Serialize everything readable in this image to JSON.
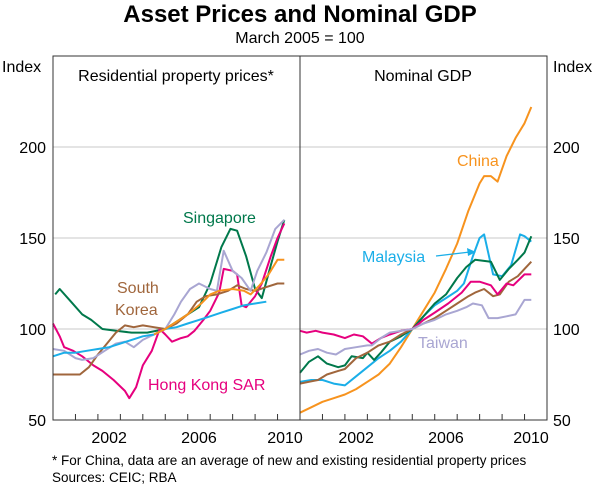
{
  "title": "Asset Prices and Nominal GDP",
  "subtitle": "March 2005 = 100",
  "footnote": "*   For China, data are an average of new and existing residential property prices",
  "sources": "Sources: CEIC; RBA",
  "chart_data": [
    {
      "type": "line",
      "title": "Residential property prices*",
      "ylabel": "Index",
      "ylim": [
        50,
        225
      ],
      "yticks": [
        50,
        100,
        150,
        200
      ],
      "xlim": [
        2000,
        2011
      ],
      "xticks": [
        "2002",
        "2006",
        "2010"
      ],
      "grid": true,
      "annotations": [
        "Singapore",
        "South Korea",
        "Hong Kong SAR"
      ],
      "series": [
        {
          "name": "Singapore",
          "color": "#00784b",
          "label": "Singapore",
          "x": [
            2000.1,
            2000.3,
            2000.8,
            2001.3,
            2001.7,
            2002.2,
            2002.8,
            2003.5,
            2004.2,
            2005.0,
            2005.5,
            2006.0,
            2006.5,
            2007.0,
            2007.5,
            2007.9,
            2008.2,
            2008.6,
            2009.0,
            2009.3,
            2009.7,
            2010.0,
            2010.3
          ],
          "y": [
            119,
            122,
            115,
            108,
            105,
            100,
            99,
            98,
            98,
            100,
            104,
            108,
            112,
            125,
            145,
            155,
            154,
            140,
            122,
            117,
            135,
            148,
            160
          ]
        },
        {
          "name": "Hong Kong SAR",
          "color": "#e6007e",
          "label": "Hong Kong SAR",
          "x": [
            2000.0,
            2000.3,
            2000.5,
            2000.9,
            2001.3,
            2001.8,
            2002.2,
            2002.7,
            2003.2,
            2003.4,
            2003.7,
            2004.0,
            2004.4,
            2004.75,
            2005.0,
            2005.3,
            2005.7,
            2006.0,
            2006.3,
            2006.7,
            2007.0,
            2007.4,
            2007.6,
            2008.0,
            2008.2,
            2008.4,
            2008.6,
            2009.0,
            2009.3,
            2009.7,
            2010.0,
            2010.3
          ],
          "y": [
            103,
            96,
            90,
            88,
            85,
            80,
            77,
            72,
            66,
            62,
            68,
            80,
            88,
            100,
            97,
            93,
            95,
            96,
            99,
            105,
            110,
            120,
            133,
            132,
            130,
            113,
            112,
            118,
            125,
            140,
            150,
            158
          ]
        },
        {
          "name": "South Korea",
          "color": "#a0663c",
          "label": "South Korea",
          "x": [
            2000.0,
            2000.6,
            2001.2,
            2001.6,
            2002.0,
            2002.4,
            2002.8,
            2003.2,
            2003.6,
            2004.0,
            2004.5,
            2005.0,
            2005.5,
            2006.0,
            2006.4,
            2006.8,
            2007.3,
            2007.8,
            2008.2,
            2008.6,
            2009.0,
            2009.5,
            2010.0,
            2010.3
          ],
          "y": [
            75,
            75,
            75,
            79,
            86,
            92,
            98,
            102,
            101,
            102,
            101,
            100,
            103,
            108,
            115,
            118,
            119,
            121,
            124,
            122,
            121,
            123,
            125,
            125
          ]
        },
        {
          "name": "Taiwan",
          "color": "#a9a6d2",
          "label": "",
          "x": [
            2000.0,
            2000.5,
            2001.0,
            2001.3,
            2001.8,
            2002.3,
            2002.8,
            2003.2,
            2003.6,
            2004.0,
            2004.5,
            2005.0,
            2005.4,
            2005.7,
            2006.1,
            2006.5,
            2007.0,
            2007.3,
            2007.6,
            2008.0,
            2008.4,
            2008.8,
            2009.1,
            2009.5,
            2009.9,
            2010.3
          ],
          "y": [
            89,
            88,
            84,
            83,
            84,
            88,
            92,
            93,
            90,
            94,
            97,
            100,
            108,
            115,
            122,
            125,
            122,
            121,
            143,
            132,
            128,
            121,
            132,
            142,
            155,
            160
          ]
        },
        {
          "name": "Malaysia",
          "color": "#1aaee8",
          "label": "",
          "x": [
            2000.0,
            2000.5,
            2001.0,
            2001.5,
            2002.0,
            2002.5,
            2003.0,
            2003.5,
            2004.0,
            2004.5,
            2005.0,
            2005.5,
            2006.0,
            2006.5,
            2007.0,
            2007.5,
            2008.0,
            2008.5,
            2009.0,
            2009.5
          ],
          "y": [
            85,
            87,
            87,
            88,
            89,
            90,
            92,
            94,
            96,
            97,
            100,
            101,
            103,
            105,
            107,
            109,
            111,
            113,
            114,
            115
          ]
        },
        {
          "name": "China",
          "color": "#f7931e",
          "label": "",
          "x": [
            2004.5,
            2005.0,
            2005.5,
            2006.0,
            2006.6,
            2007.0,
            2007.4,
            2008.0,
            2008.5,
            2008.8,
            2009.2,
            2009.6,
            2010.0,
            2010.3
          ],
          "y": [
            97,
            100,
            104,
            108,
            114,
            119,
            121,
            122,
            121,
            119,
            124,
            130,
            138,
            138
          ]
        }
      ]
    },
    {
      "type": "line",
      "title": "Nominal GDP",
      "ylabel": "Index",
      "ylim": [
        50,
        225
      ],
      "yticks": [
        50,
        100,
        150,
        200
      ],
      "xlim": [
        2000,
        2011
      ],
      "xticks": [
        "2002",
        "2006",
        "2010"
      ],
      "grid": true,
      "annotations": [
        "China",
        "Malaysia",
        "Taiwan"
      ],
      "series": [
        {
          "name": "China",
          "color": "#f7931e",
          "x": [
            2000.0,
            2000.5,
            2001.0,
            2001.5,
            2002.0,
            2002.5,
            2003.0,
            2003.5,
            2004.0,
            2004.5,
            2005.0,
            2005.5,
            2006.0,
            2006.5,
            2007.0,
            2007.5,
            2008.0,
            2008.2,
            2008.5,
            2008.8,
            2009.2,
            2009.6,
            2010.0,
            2010.3
          ],
          "y": [
            54,
            57,
            60,
            62,
            64,
            67,
            71,
            75,
            81,
            90,
            100,
            110,
            120,
            133,
            147,
            165,
            180,
            184,
            184,
            181,
            195,
            205,
            213,
            222
          ]
        },
        {
          "name": "Malaysia",
          "color": "#1aaee8",
          "x": [
            2000.0,
            2000.5,
            2001.0,
            2001.5,
            2002.0,
            2002.5,
            2003.0,
            2003.5,
            2004.0,
            2004.5,
            2005.0,
            2005.5,
            2006.0,
            2006.5,
            2007.0,
            2007.3,
            2007.7,
            2008.0,
            2008.2,
            2008.6,
            2009.0,
            2009.4,
            2009.8,
            2010.0,
            2010.3
          ],
          "y": [
            71,
            72,
            72,
            70,
            69,
            74,
            79,
            84,
            88,
            93,
            100,
            107,
            113,
            117,
            121,
            125,
            140,
            150,
            152,
            130,
            129,
            135,
            152,
            151,
            148
          ]
        },
        {
          "name": "Singapore",
          "color": "#00784b",
          "x": [
            2000.0,
            2000.4,
            2000.8,
            2001.2,
            2001.7,
            2002.0,
            2002.3,
            2002.8,
            2003.0,
            2003.3,
            2003.6,
            2004.0,
            2004.5,
            2005.0,
            2005.5,
            2006.0,
            2006.5,
            2007.0,
            2007.4,
            2007.8,
            2008.5,
            2008.9,
            2009.3,
            2009.7,
            2010.0,
            2010.3
          ],
          "y": [
            76,
            82,
            85,
            81,
            79,
            80,
            85,
            84,
            87,
            83,
            87,
            93,
            96,
            100,
            107,
            114,
            119,
            128,
            134,
            138,
            137,
            127,
            133,
            138,
            142,
            151
          ]
        },
        {
          "name": "South Korea",
          "color": "#a0663c",
          "x": [
            2000.0,
            2000.4,
            2000.8,
            2001.2,
            2001.7,
            2002.0,
            2002.5,
            2003.0,
            2003.5,
            2004.0,
            2004.5,
            2005.0,
            2005.5,
            2006.0,
            2006.5,
            2007.0,
            2007.5,
            2007.8,
            2008.2,
            2008.6,
            2008.9,
            2009.3,
            2009.7,
            2010.0,
            2010.3
          ],
          "y": [
            70,
            71,
            72,
            75,
            77,
            78,
            84,
            87,
            91,
            93,
            97,
            100,
            103,
            106,
            110,
            114,
            118,
            120,
            122,
            118,
            119,
            126,
            129,
            133,
            137
          ]
        },
        {
          "name": "Hong Kong SAR",
          "color": "#e6007e",
          "x": [
            2000.0,
            2000.3,
            2000.7,
            2001.0,
            2001.5,
            2002.0,
            2002.4,
            2002.8,
            2003.2,
            2003.6,
            2004.0,
            2004.5,
            2005.0,
            2005.5,
            2006.0,
            2006.6,
            2007.2,
            2007.6,
            2008.0,
            2008.5,
            2008.8,
            2009.2,
            2009.5,
            2010.0,
            2010.3
          ],
          "y": [
            99,
            98,
            99,
            98,
            97,
            95,
            97,
            96,
            92,
            95,
            97,
            99,
            100,
            105,
            109,
            114,
            120,
            126,
            126,
            124,
            119,
            125,
            124,
            130,
            130
          ]
        },
        {
          "name": "Taiwan",
          "color": "#a9a6d2",
          "x": [
            2000.0,
            2000.4,
            2000.8,
            2001.2,
            2001.6,
            2002.0,
            2002.5,
            2003.0,
            2003.2,
            2003.6,
            2004.0,
            2004.5,
            2005.0,
            2005.5,
            2006.0,
            2006.5,
            2007.0,
            2007.4,
            2007.7,
            2008.1,
            2008.4,
            2008.8,
            2009.2,
            2009.6,
            2010.0,
            2010.3
          ],
          "y": [
            86,
            88,
            89,
            87,
            86,
            89,
            90,
            91,
            91,
            95,
            98,
            99,
            100,
            103,
            105,
            108,
            110,
            112,
            114,
            113,
            106,
            106,
            107,
            108,
            116,
            116
          ]
        }
      ]
    }
  ],
  "labels": {
    "index_left": "Index",
    "index_right": "Index",
    "singapore": "Singapore",
    "south_korea_1": "South",
    "south_korea_2": "Korea",
    "hong_kong": "Hong Kong SAR",
    "china": "China",
    "malaysia": "Malaysia",
    "taiwan": "Taiwan"
  }
}
